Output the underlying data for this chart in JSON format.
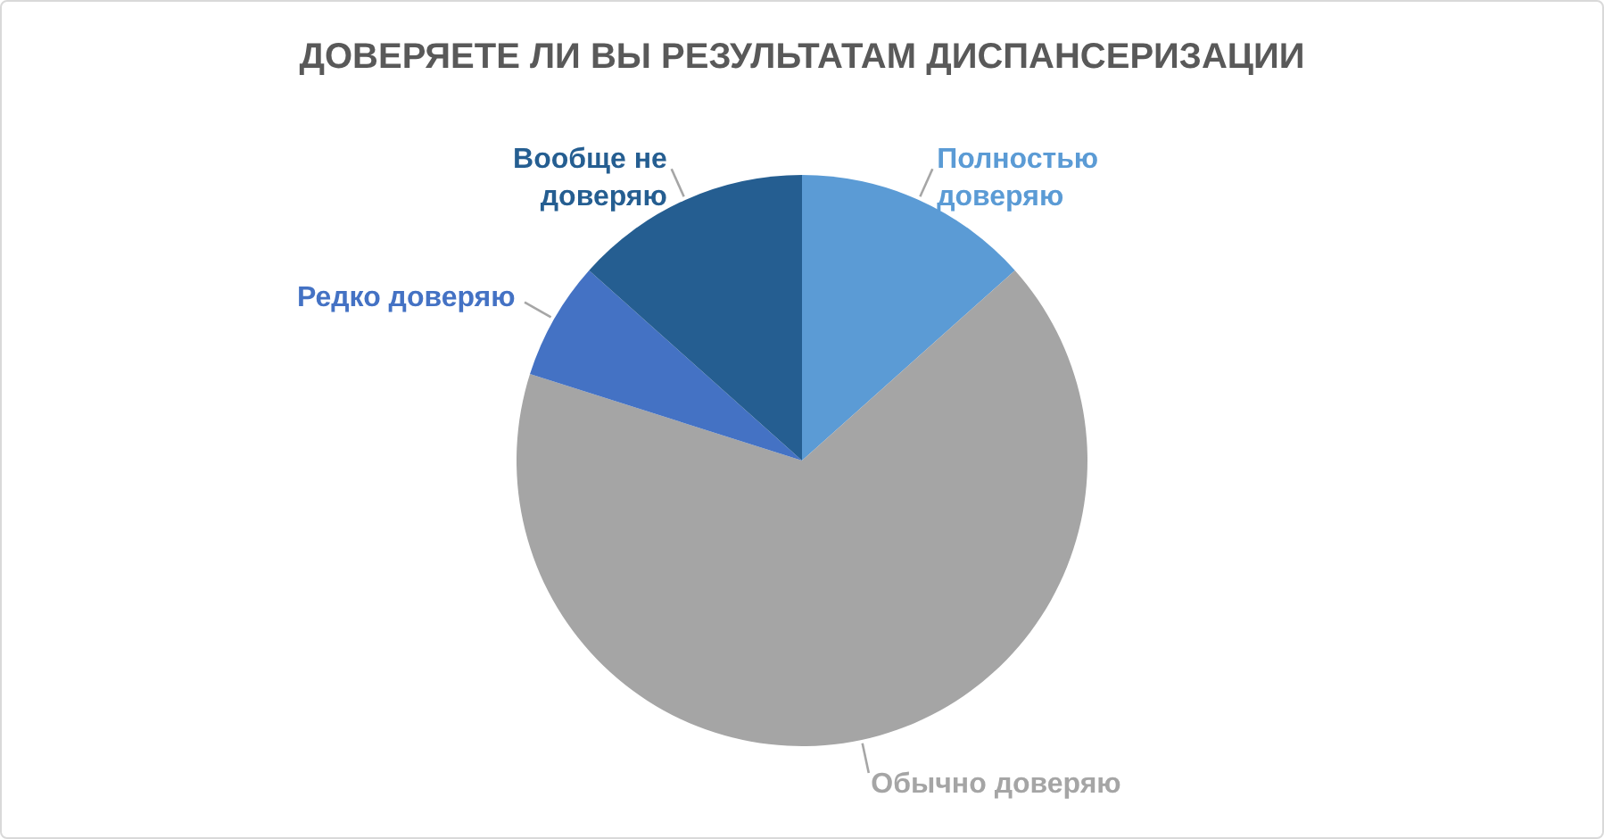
{
  "chart_data": {
    "type": "pie",
    "title": "ДОВЕРЯЕТЕ ЛИ ВЫ РЕЗУЛЬТАТАМ ДИСПАНСЕРИЗАЦИИ",
    "categories": [
      "Полностью доверяю",
      "Обычно доверяю",
      "Редко доверяю",
      "Вообще не доверяю"
    ],
    "values": [
      13.4,
      66.5,
      6.7,
      13.4
    ],
    "colors": [
      "#5b9bd5",
      "#a5a5a5",
      "#4472c4",
      "#255e91"
    ]
  }
}
